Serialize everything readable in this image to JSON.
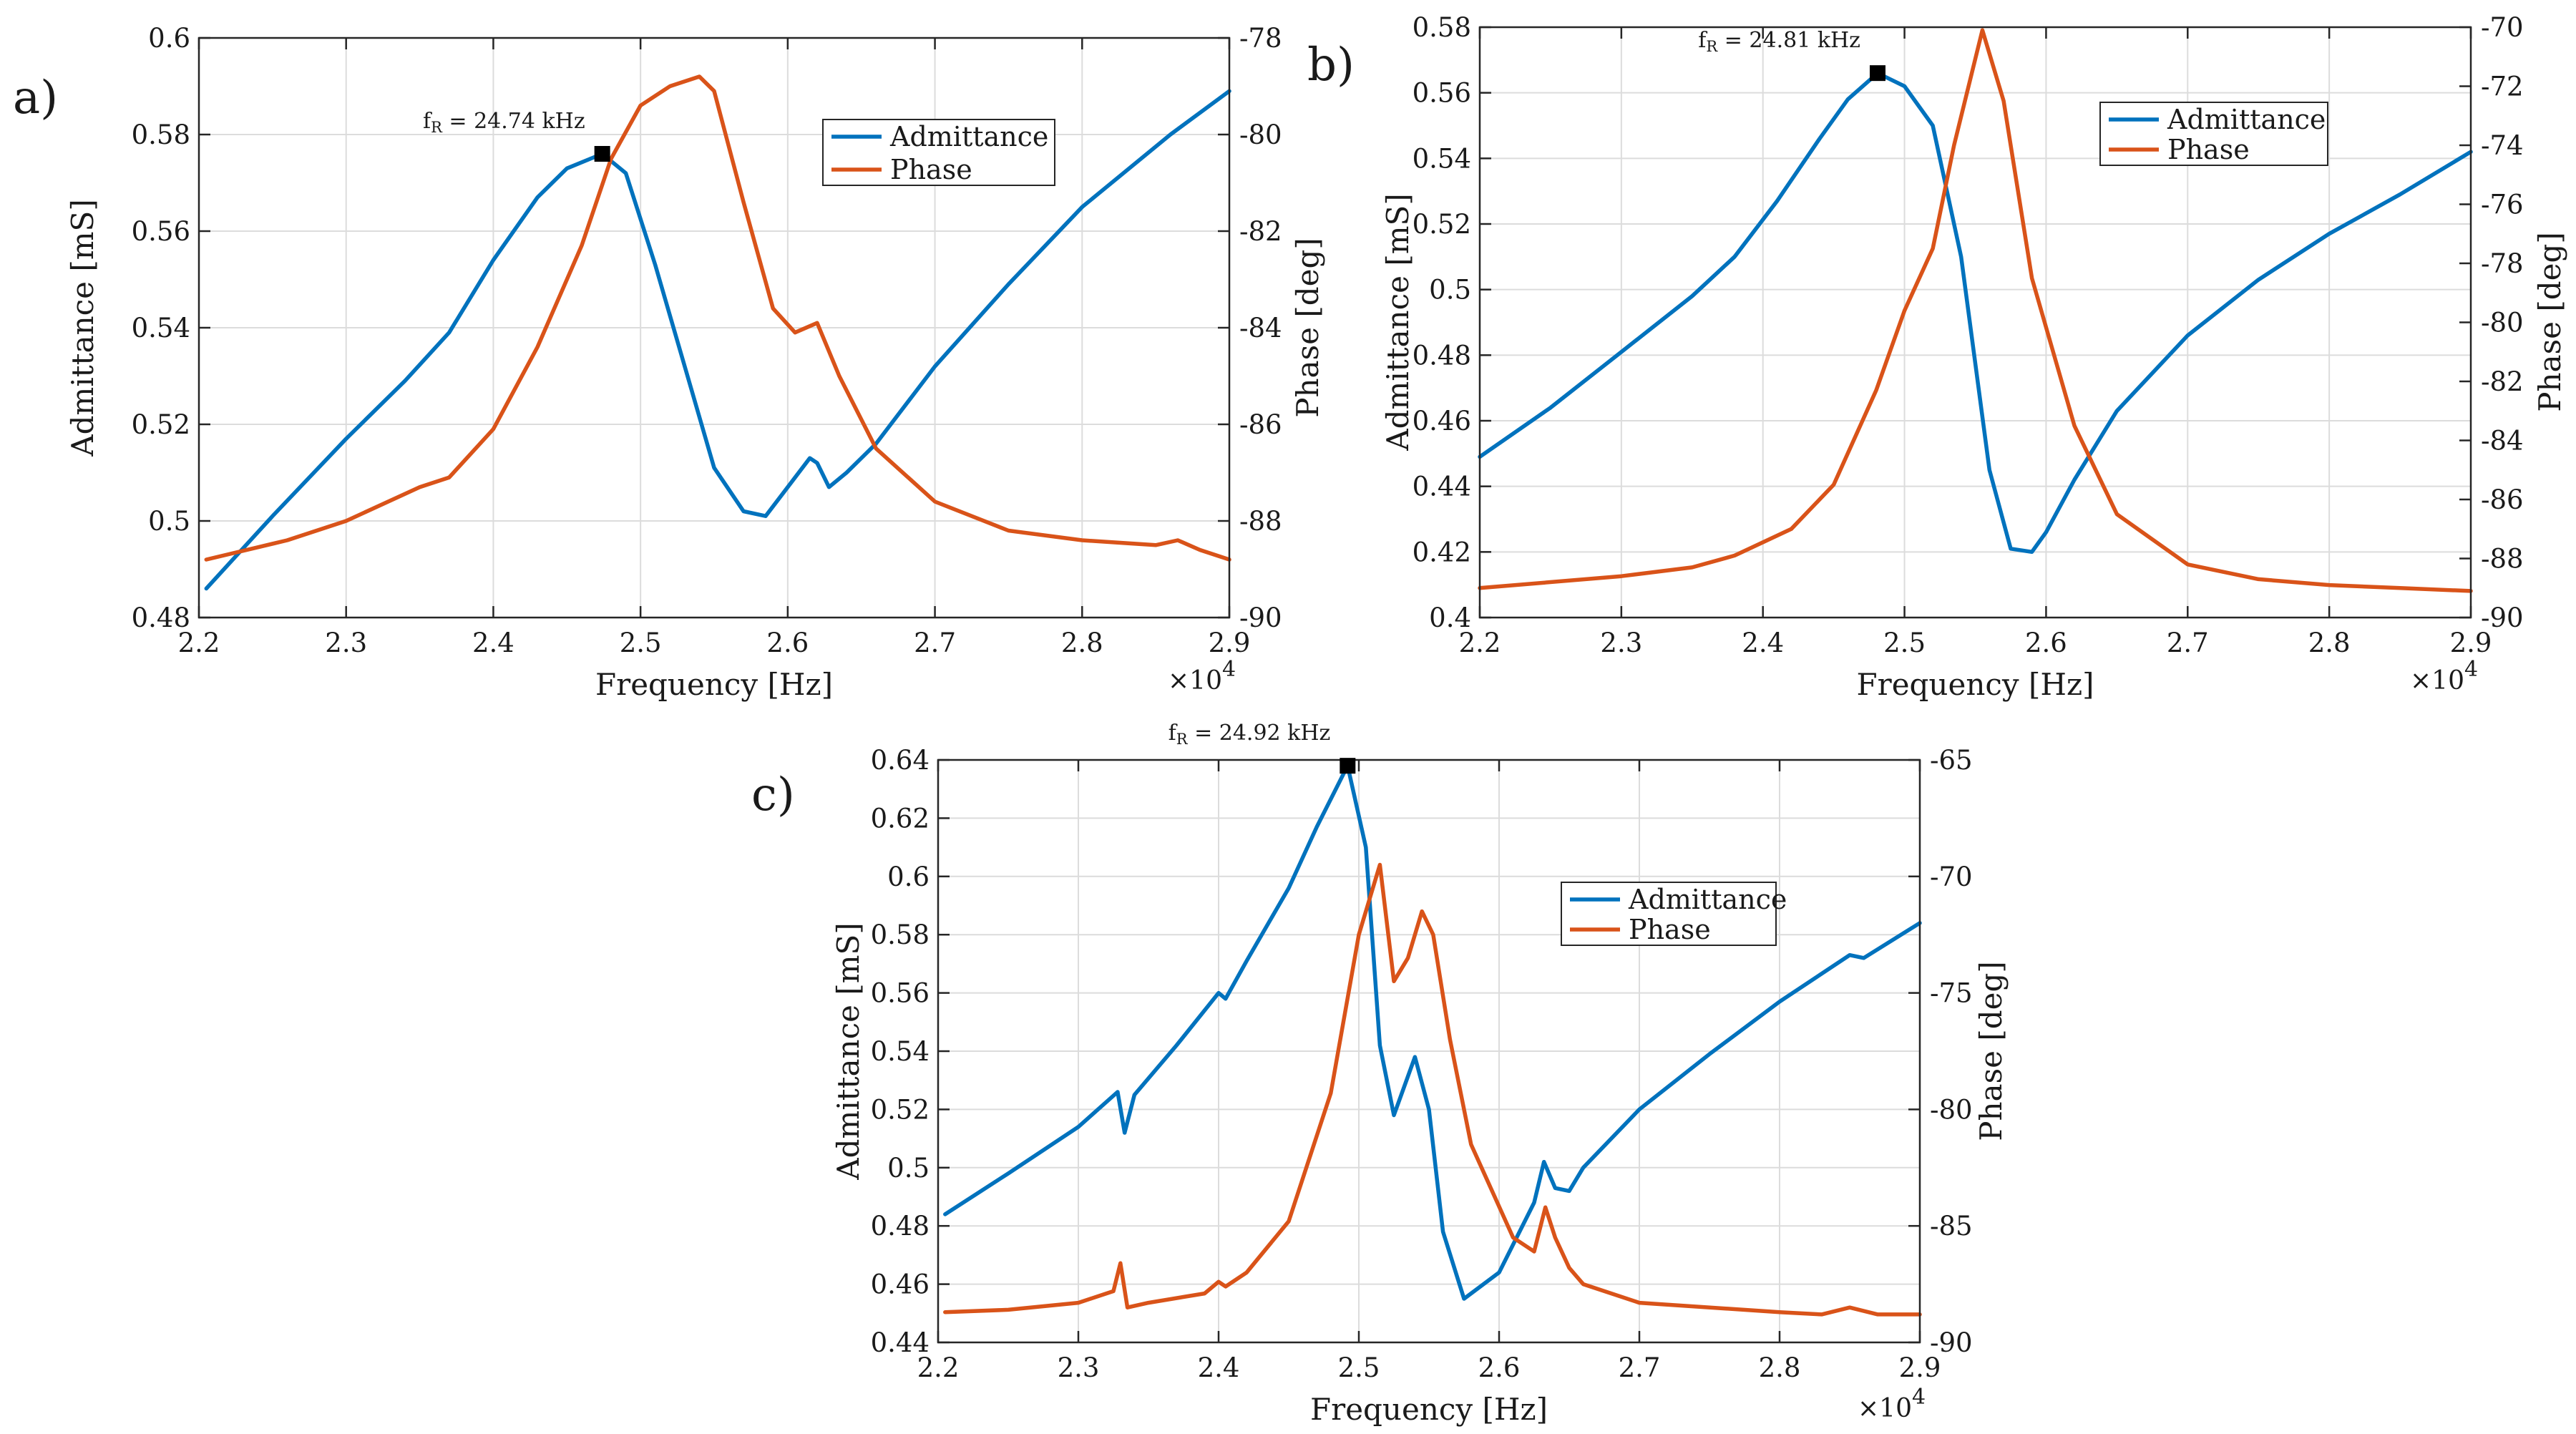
{
  "colors": {
    "admittance": "#0072BD",
    "phase": "#D95319"
  },
  "chart_data": [
    {
      "panel_label": "a)",
      "type": "line",
      "xlabel": "Frequency [Hz]",
      "ylabel": "Admittance [mS]",
      "ylabel_right": "Phase [deg]",
      "x_multiplier": "×10",
      "x_exponent": "4",
      "xlim": [
        2.2,
        2.9
      ],
      "ylim": [
        0.48,
        0.6
      ],
      "ylim_right": [
        -90,
        -78
      ],
      "xticks": [
        2.2,
        2.3,
        2.4,
        2.5,
        2.6,
        2.7,
        2.8,
        2.9
      ],
      "xtick_labels": [
        "2.2",
        "2.3",
        "2.4",
        "2.5",
        "2.6",
        "2.7",
        "2.8",
        "2.9"
      ],
      "yticks": [
        0.48,
        0.5,
        0.52,
        0.54,
        0.56,
        0.58,
        0.6
      ],
      "ytick_labels": [
        "0.48",
        "0.5",
        "0.52",
        "0.54",
        "0.56",
        "0.58",
        "0.6"
      ],
      "yticks_right": [
        -90,
        -88,
        -86,
        -84,
        -82,
        -80,
        -78
      ],
      "ytick_labels_right": [
        "-90",
        "-88",
        "-86",
        "-84",
        "-82",
        "-80",
        "-78"
      ],
      "grid": true,
      "legend_placement": "upper-right",
      "annotation": {
        "prefix": "f",
        "subscript": "R",
        "text": " = 24.74 kHz",
        "x": 2.474,
        "y": 0.576
      },
      "series": [
        {
          "name": "Admittance",
          "axis": "left",
          "x": [
            2.205,
            2.25,
            2.3,
            2.34,
            2.37,
            2.4,
            2.43,
            2.45,
            2.474,
            2.49,
            2.51,
            2.53,
            2.55,
            2.57,
            2.585,
            2.6,
            2.615,
            2.62,
            2.628,
            2.64,
            2.66,
            2.7,
            2.75,
            2.8,
            2.86,
            2.9
          ],
          "y": [
            0.486,
            0.501,
            0.517,
            0.529,
            0.539,
            0.554,
            0.567,
            0.573,
            0.576,
            0.572,
            0.553,
            0.532,
            0.511,
            0.502,
            0.501,
            0.507,
            0.513,
            0.512,
            0.507,
            0.51,
            0.516,
            0.532,
            0.549,
            0.565,
            0.58,
            0.589
          ]
        },
        {
          "name": "Phase",
          "axis": "right",
          "x": [
            2.205,
            2.26,
            2.3,
            2.35,
            2.37,
            2.4,
            2.43,
            2.46,
            2.48,
            2.5,
            2.52,
            2.54,
            2.55,
            2.57,
            2.59,
            2.605,
            2.62,
            2.635,
            2.66,
            2.7,
            2.75,
            2.8,
            2.85,
            2.865,
            2.88,
            2.9
          ],
          "y": [
            -88.8,
            -88.4,
            -88.0,
            -87.3,
            -87.1,
            -86.1,
            -84.4,
            -82.3,
            -80.5,
            -79.4,
            -79.0,
            -78.8,
            -79.1,
            -81.4,
            -83.6,
            -84.1,
            -83.9,
            -85.0,
            -86.5,
            -87.6,
            -88.2,
            -88.4,
            -88.5,
            -88.4,
            -88.6,
            -88.8
          ]
        }
      ]
    },
    {
      "panel_label": "b)",
      "type": "line",
      "xlabel": "Frequency [Hz]",
      "ylabel": "Admittance [mS]",
      "ylabel_right": "Phase [deg]",
      "x_multiplier": "×10",
      "x_exponent": "4",
      "xlim": [
        2.2,
        2.9
      ],
      "ylim": [
        0.4,
        0.58
      ],
      "ylim_right": [
        -90,
        -70
      ],
      "xticks": [
        2.2,
        2.3,
        2.4,
        2.5,
        2.6,
        2.7,
        2.8,
        2.9
      ],
      "xtick_labels": [
        "2.2",
        "2.3",
        "2.4",
        "2.5",
        "2.6",
        "2.7",
        "2.8",
        "2.9"
      ],
      "yticks": [
        0.4,
        0.42,
        0.44,
        0.46,
        0.48,
        0.5,
        0.52,
        0.54,
        0.56,
        0.58
      ],
      "ytick_labels": [
        "0.4",
        "0.42",
        "0.44",
        "0.46",
        "0.48",
        "0.5",
        "0.52",
        "0.54",
        "0.56",
        "0.58"
      ],
      "yticks_right": [
        -90,
        -88,
        -86,
        -84,
        -82,
        -80,
        -78,
        -76,
        -74,
        -72,
        -70
      ],
      "ytick_labels_right": [
        "-90",
        "-88",
        "-86",
        "-84",
        "-82",
        "-80",
        "-78",
        "-76",
        "-74",
        "-72",
        "-70"
      ],
      "grid": true,
      "legend_placement": "upper-right",
      "annotation": {
        "prefix": "f",
        "subscript": "R",
        "text": " = 24.81 kHz",
        "x": 2.481,
        "y": 0.566
      },
      "series": [
        {
          "name": "Admittance",
          "axis": "left",
          "x": [
            2.2,
            2.25,
            2.3,
            2.35,
            2.38,
            2.41,
            2.44,
            2.46,
            2.481,
            2.5,
            2.52,
            2.54,
            2.56,
            2.575,
            2.59,
            2.6,
            2.62,
            2.65,
            2.7,
            2.75,
            2.8,
            2.85,
            2.9
          ],
          "y": [
            0.449,
            0.464,
            0.481,
            0.498,
            0.51,
            0.527,
            0.546,
            0.558,
            0.566,
            0.562,
            0.55,
            0.51,
            0.445,
            0.421,
            0.42,
            0.426,
            0.442,
            0.463,
            0.486,
            0.503,
            0.517,
            0.529,
            0.542
          ]
        },
        {
          "name": "Phase",
          "axis": "right",
          "x": [
            2.2,
            2.3,
            2.35,
            2.38,
            2.42,
            2.45,
            2.48,
            2.5,
            2.52,
            2.535,
            2.555,
            2.57,
            2.59,
            2.62,
            2.65,
            2.7,
            2.75,
            2.8,
            2.85,
            2.9
          ],
          "y": [
            -89.0,
            -88.6,
            -88.3,
            -87.9,
            -87.0,
            -85.5,
            -82.3,
            -79.6,
            -77.5,
            -74.0,
            -70.1,
            -72.5,
            -78.5,
            -83.5,
            -86.5,
            -88.2,
            -88.7,
            -88.9,
            -89.0,
            -89.1
          ]
        }
      ]
    },
    {
      "panel_label": "c)",
      "type": "line",
      "xlabel": "Frequency [Hz]",
      "ylabel": "Admittance [mS]",
      "ylabel_right": "Phase [deg]",
      "x_multiplier": "×10",
      "x_exponent": "4",
      "xlim": [
        2.2,
        2.9
      ],
      "ylim": [
        0.44,
        0.64
      ],
      "ylim_right": [
        -90,
        -65
      ],
      "xticks": [
        2.2,
        2.3,
        2.4,
        2.5,
        2.6,
        2.7,
        2.8,
        2.9
      ],
      "xtick_labels": [
        "2.2",
        "2.3",
        "2.4",
        "2.5",
        "2.6",
        "2.7",
        "2.8",
        "2.9"
      ],
      "yticks": [
        0.44,
        0.46,
        0.48,
        0.5,
        0.52,
        0.54,
        0.56,
        0.58,
        0.6,
        0.62,
        0.64
      ],
      "ytick_labels": [
        "0.44",
        "0.46",
        "0.48",
        "0.5",
        "0.52",
        "0.54",
        "0.56",
        "0.58",
        "0.6",
        "0.62",
        "0.64"
      ],
      "yticks_right": [
        -90,
        -85,
        -80,
        -75,
        -70,
        -65
      ],
      "ytick_labels_right": [
        "-90",
        "-85",
        "-80",
        "-75",
        "-70",
        "-65"
      ],
      "grid": true,
      "legend_placement": "upper-right",
      "annotation": {
        "prefix": "f",
        "subscript": "R",
        "text": " = 24.92 kHz",
        "x": 2.492,
        "y": 0.638
      },
      "series": [
        {
          "name": "Admittance",
          "axis": "left",
          "x": [
            2.205,
            2.25,
            2.3,
            2.328,
            2.333,
            2.34,
            2.37,
            2.4,
            2.405,
            2.42,
            2.45,
            2.47,
            2.492,
            2.505,
            2.515,
            2.525,
            2.54,
            2.55,
            2.56,
            2.575,
            2.6,
            2.625,
            2.632,
            2.64,
            2.65,
            2.66,
            2.7,
            2.75,
            2.8,
            2.85,
            2.86,
            2.9
          ],
          "y": [
            0.484,
            0.498,
            0.514,
            0.526,
            0.512,
            0.525,
            0.542,
            0.56,
            0.558,
            0.571,
            0.596,
            0.617,
            0.638,
            0.61,
            0.542,
            0.518,
            0.538,
            0.52,
            0.478,
            0.455,
            0.464,
            0.488,
            0.502,
            0.493,
            0.492,
            0.5,
            0.52,
            0.539,
            0.557,
            0.573,
            0.572,
            0.584
          ]
        },
        {
          "name": "Phase",
          "axis": "right",
          "x": [
            2.205,
            2.25,
            2.3,
            2.325,
            2.33,
            2.335,
            2.35,
            2.39,
            2.4,
            2.405,
            2.42,
            2.45,
            2.48,
            2.5,
            2.515,
            2.525,
            2.535,
            2.545,
            2.553,
            2.565,
            2.58,
            2.61,
            2.625,
            2.633,
            2.64,
            2.65,
            2.66,
            2.7,
            2.8,
            2.83,
            2.85,
            2.87,
            2.9
          ],
          "y": [
            -88.7,
            -88.6,
            -88.3,
            -87.8,
            -86.6,
            -88.5,
            -88.3,
            -87.9,
            -87.4,
            -87.6,
            -87.0,
            -84.8,
            -79.3,
            -72.5,
            -69.5,
            -74.5,
            -73.5,
            -71.5,
            -72.5,
            -77.0,
            -81.5,
            -85.5,
            -86.1,
            -84.2,
            -85.5,
            -86.8,
            -87.5,
            -88.3,
            -88.7,
            -88.8,
            -88.5,
            -88.8,
            -88.8
          ]
        }
      ]
    }
  ]
}
